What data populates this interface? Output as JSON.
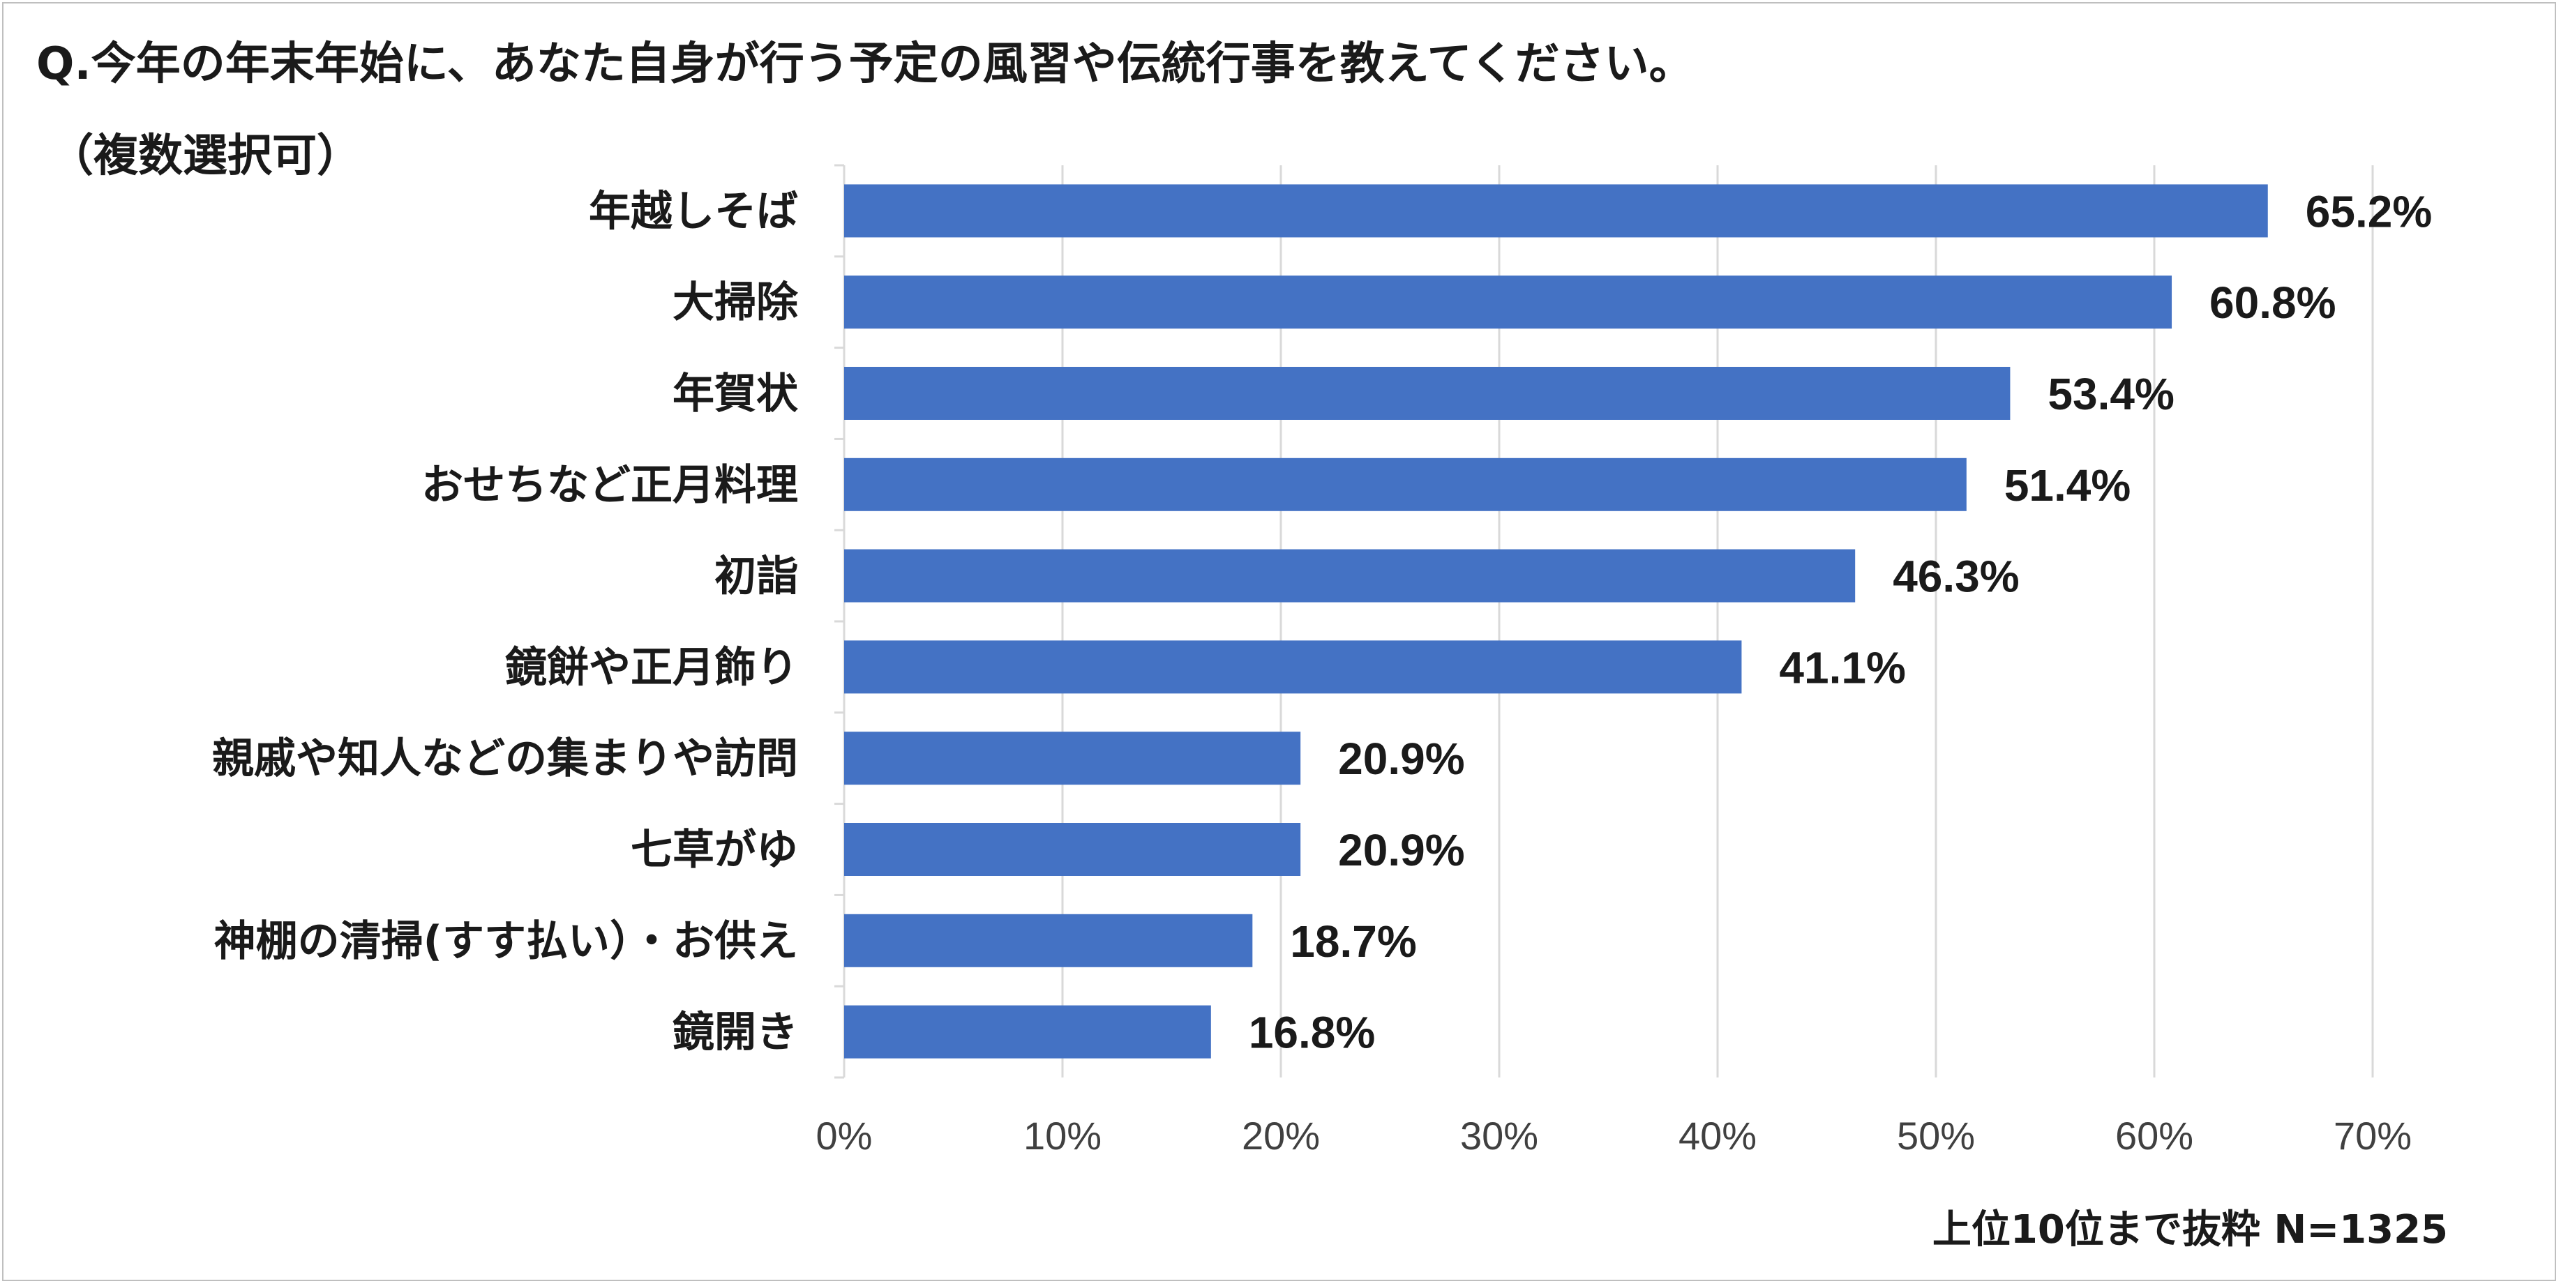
{
  "chart_data": {
    "type": "bar",
    "orientation": "horizontal",
    "title": "Q.今年の年末年始に、あなた自身が行う予定の風習や伝統行事を教えてください。",
    "subtitle": "（複数選択可）",
    "footnote": "上位10位まで抜粋  N=1325",
    "categories": [
      "年越しそば",
      "大掃除",
      "年賀状",
      "おせちなど正月料理",
      "初詣",
      "鏡餅や正月飾り",
      "親戚や知人などの集まりや訪問",
      "七草がゆ",
      "神棚の清掃(すす払い）・お供え",
      "鏡開き"
    ],
    "values": [
      65.2,
      60.8,
      53.4,
      51.4,
      46.3,
      41.1,
      20.9,
      20.9,
      18.7,
      16.8
    ],
    "value_labels": [
      "65.2%",
      "60.8%",
      "53.4%",
      "51.4%",
      "46.3%",
      "41.1%",
      "20.9%",
      "20.9%",
      "18.7%",
      "16.8%"
    ],
    "xlim": [
      0,
      70
    ],
    "xticks": [
      0,
      10,
      20,
      30,
      40,
      50,
      60,
      70
    ],
    "xtick_labels": [
      "0%",
      "10%",
      "20%",
      "30%",
      "40%",
      "50%",
      "60%",
      "70%"
    ],
    "xlabel": "",
    "ylabel": "",
    "grid": "vertical",
    "legend": "none",
    "bar_color": "#4472c4",
    "grid_color": "#d9d9d9",
    "axis_color": "#d9d9d9"
  }
}
